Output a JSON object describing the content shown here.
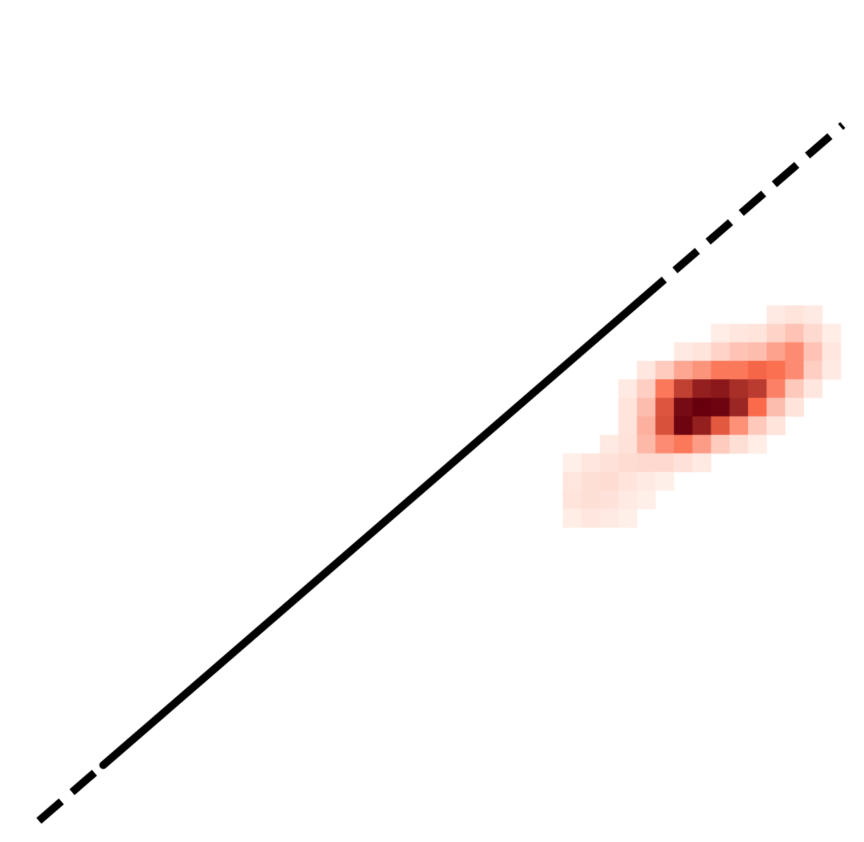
{
  "chart_data": {
    "type": "heatmap",
    "title": "",
    "xlabel": "",
    "ylabel": "",
    "grid": false,
    "legend": "none",
    "colormap": "Reds",
    "colors": {
      "reference_line": "#000000",
      "cmap_low": "#fff5f0",
      "cmap_high": "#67000d"
    },
    "reference_line": {
      "solid_segment": {
        "from": 0.08,
        "to": 0.75
      },
      "dashed_extensions": true
    },
    "density": {
      "origin_col": 30,
      "origin_row": 16,
      "cols": 15,
      "rows": 12,
      "cells": [
        [
          11,
          0,
          0.04
        ],
        [
          12,
          0,
          0.06
        ],
        [
          13,
          0,
          0.04
        ],
        [
          8,
          1,
          0.03
        ],
        [
          9,
          1,
          0.05
        ],
        [
          10,
          1,
          0.06
        ],
        [
          11,
          1,
          0.12
        ],
        [
          12,
          1,
          0.18
        ],
        [
          13,
          1,
          0.1
        ],
        [
          14,
          1,
          0.03
        ],
        [
          6,
          2,
          0.04
        ],
        [
          7,
          2,
          0.06
        ],
        [
          8,
          2,
          0.12
        ],
        [
          9,
          2,
          0.18
        ],
        [
          10,
          2,
          0.2
        ],
        [
          11,
          2,
          0.3
        ],
        [
          12,
          2,
          0.38
        ],
        [
          13,
          2,
          0.18
        ],
        [
          14,
          2,
          0.05
        ],
        [
          4,
          3,
          0.05
        ],
        [
          5,
          3,
          0.15
        ],
        [
          6,
          3,
          0.28
        ],
        [
          7,
          3,
          0.35
        ],
        [
          8,
          3,
          0.45
        ],
        [
          9,
          3,
          0.45
        ],
        [
          10,
          3,
          0.52
        ],
        [
          11,
          3,
          0.48
        ],
        [
          12,
          3,
          0.38
        ],
        [
          13,
          3,
          0.14
        ],
        [
          14,
          3,
          0.04
        ],
        [
          3,
          4,
          0.04
        ],
        [
          4,
          4,
          0.14
        ],
        [
          5,
          4,
          0.45
        ],
        [
          6,
          4,
          0.7
        ],
        [
          7,
          4,
          0.85
        ],
        [
          8,
          4,
          0.88
        ],
        [
          9,
          4,
          0.78
        ],
        [
          10,
          4,
          0.72
        ],
        [
          11,
          4,
          0.42
        ],
        [
          12,
          4,
          0.16
        ],
        [
          13,
          4,
          0.05
        ],
        [
          3,
          5,
          0.06
        ],
        [
          4,
          5,
          0.2
        ],
        [
          5,
          5,
          0.6
        ],
        [
          6,
          5,
          0.95
        ],
        [
          7,
          5,
          1.0
        ],
        [
          8,
          5,
          0.98
        ],
        [
          9,
          5,
          0.82
        ],
        [
          10,
          5,
          0.5
        ],
        [
          11,
          5,
          0.2
        ],
        [
          12,
          5,
          0.06
        ],
        [
          3,
          6,
          0.06
        ],
        [
          4,
          6,
          0.25
        ],
        [
          5,
          6,
          0.62
        ],
        [
          6,
          6,
          0.98
        ],
        [
          7,
          6,
          0.85
        ],
        [
          8,
          6,
          0.58
        ],
        [
          9,
          6,
          0.36
        ],
        [
          10,
          6,
          0.16
        ],
        [
          11,
          6,
          0.06
        ],
        [
          2,
          7,
          0.04
        ],
        [
          3,
          7,
          0.07
        ],
        [
          4,
          7,
          0.22
        ],
        [
          5,
          7,
          0.38
        ],
        [
          6,
          7,
          0.45
        ],
        [
          7,
          7,
          0.32
        ],
        [
          8,
          7,
          0.15
        ],
        [
          9,
          7,
          0.08
        ],
        [
          10,
          7,
          0.03
        ],
        [
          0,
          8,
          0.02
        ],
        [
          1,
          8,
          0.05
        ],
        [
          2,
          8,
          0.07
        ],
        [
          3,
          8,
          0.09
        ],
        [
          4,
          8,
          0.1
        ],
        [
          5,
          8,
          0.1
        ],
        [
          6,
          8,
          0.07
        ],
        [
          7,
          8,
          0.04
        ],
        [
          0,
          9,
          0.05
        ],
        [
          1,
          9,
          0.08
        ],
        [
          2,
          9,
          0.09
        ],
        [
          3,
          9,
          0.06
        ],
        [
          4,
          9,
          0.04
        ],
        [
          5,
          9,
          0.02
        ],
        [
          0,
          10,
          0.06
        ],
        [
          1,
          10,
          0.08
        ],
        [
          2,
          10,
          0.07
        ],
        [
          3,
          10,
          0.04
        ],
        [
          4,
          10,
          0.02
        ],
        [
          0,
          11,
          0.03
        ],
        [
          1,
          11,
          0.05
        ],
        [
          2,
          11,
          0.04
        ],
        [
          3,
          11,
          0.02
        ]
      ]
    }
  }
}
